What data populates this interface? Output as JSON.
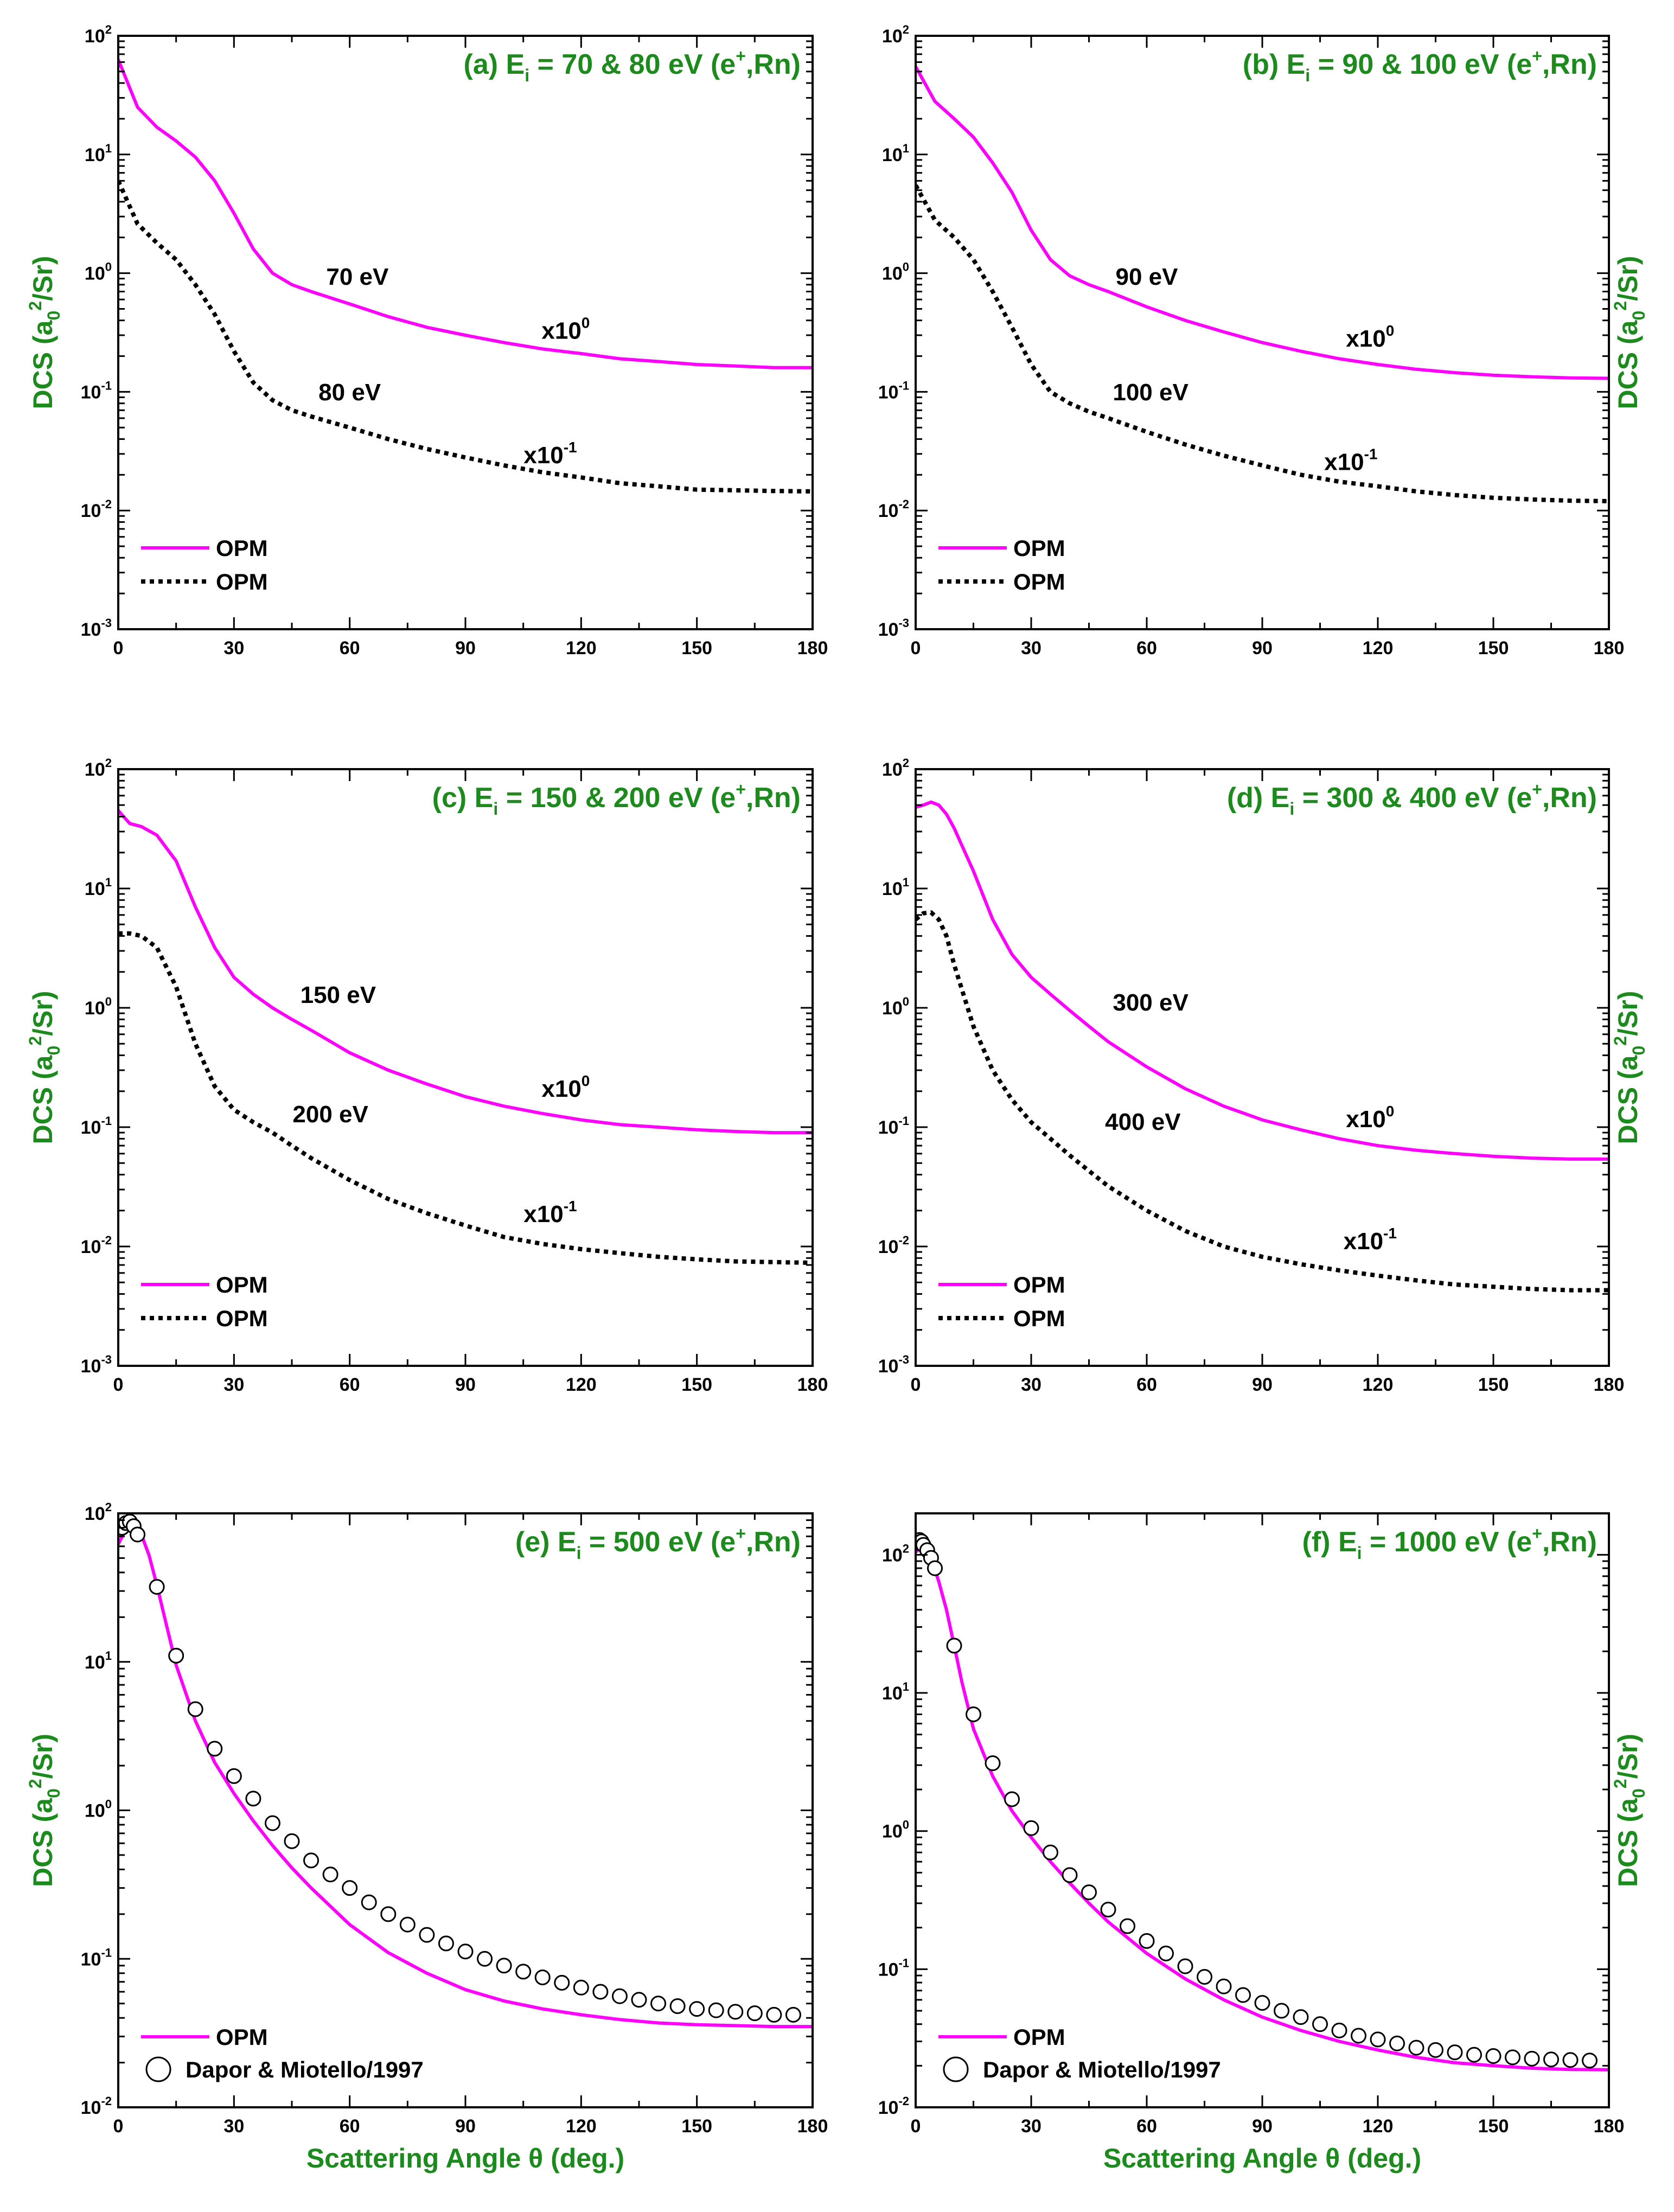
{
  "figure": {
    "y_label": {
      "pre": "DCS (a",
      "sub": "0",
      "sup": "2",
      "post": "/Sr)"
    },
    "x_label": "Scattering Angle θ (deg.)"
  },
  "chart_data": [
    {
      "id": "a",
      "type": "line",
      "title": {
        "pre": "(a) E",
        "sub": "i",
        "mid": " = 70 & 80 eV (e",
        "sup": "+",
        "post": ",Rn)"
      },
      "xlim": [
        0,
        180
      ],
      "xticks": [
        0,
        30,
        60,
        90,
        120,
        150,
        180
      ],
      "ylim_log10": [
        -3,
        2
      ],
      "yticks_log10": [
        -3,
        -2,
        -1,
        0,
        1,
        2
      ],
      "series": [
        {
          "name": "70 eV",
          "legend": "OPM",
          "style": "solid",
          "color": "#ff00ff",
          "x": [
            0,
            5,
            10,
            15,
            20,
            25,
            30,
            35,
            40,
            45,
            50,
            60,
            70,
            80,
            90,
            100,
            110,
            120,
            130,
            140,
            150,
            160,
            170,
            180
          ],
          "y": [
            63,
            25,
            17,
            13,
            9.5,
            6,
            3.2,
            1.6,
            1.0,
            0.8,
            0.7,
            0.55,
            0.43,
            0.35,
            0.3,
            0.26,
            0.23,
            0.21,
            0.19,
            0.18,
            0.17,
            0.165,
            0.16,
            0.16
          ]
        },
        {
          "name": "80 eV",
          "legend": "OPM",
          "style": "dotted",
          "color": "#000000",
          "x": [
            0,
            5,
            10,
            15,
            20,
            25,
            30,
            35,
            40,
            45,
            50,
            60,
            70,
            80,
            90,
            100,
            110,
            120,
            130,
            140,
            150,
            160,
            170,
            180
          ],
          "y": [
            6,
            2.6,
            1.8,
            1.3,
            0.8,
            0.45,
            0.22,
            0.12,
            0.085,
            0.07,
            0.062,
            0.05,
            0.04,
            0.033,
            0.028,
            0.024,
            0.021,
            0.019,
            0.017,
            0.016,
            0.015,
            0.0148,
            0.0146,
            0.0145
          ]
        }
      ],
      "annotations": [
        {
          "text": "70 eV",
          "x": 62,
          "y": 0.8
        },
        {
          "text": "80 eV",
          "x": 60,
          "y": 0.085
        },
        {
          "text": "x10",
          "sup": "0",
          "x": 116,
          "y": 0.28
        },
        {
          "text": "x10",
          "sup": "-1",
          "x": 112,
          "y": 0.025
        }
      ]
    },
    {
      "id": "b",
      "type": "line",
      "title": {
        "pre": "(b) E",
        "sub": "i",
        "mid": " = 90 & 100 eV (e",
        "sup": "+",
        "post": ",Rn)"
      },
      "xlim": [
        0,
        180
      ],
      "xticks": [
        0,
        30,
        60,
        90,
        120,
        150,
        180
      ],
      "ylim_log10": [
        -3,
        2
      ],
      "yticks_log10": [
        -3,
        -2,
        -1,
        0,
        1,
        2
      ],
      "series": [
        {
          "name": "90 eV",
          "legend": "OPM",
          "style": "solid",
          "color": "#ff00ff",
          "x": [
            0,
            5,
            10,
            15,
            20,
            25,
            30,
            35,
            40,
            45,
            50,
            60,
            70,
            80,
            90,
            100,
            110,
            120,
            130,
            140,
            150,
            160,
            170,
            180
          ],
          "y": [
            55,
            28,
            20,
            14,
            8.5,
            4.8,
            2.3,
            1.3,
            0.95,
            0.8,
            0.7,
            0.52,
            0.4,
            0.32,
            0.26,
            0.22,
            0.19,
            0.17,
            0.155,
            0.145,
            0.138,
            0.134,
            0.131,
            0.13
          ]
        },
        {
          "name": "100 eV",
          "legend": "OPM",
          "style": "dotted",
          "color": "#000000",
          "x": [
            0,
            5,
            10,
            15,
            20,
            25,
            30,
            35,
            40,
            45,
            50,
            60,
            70,
            80,
            90,
            100,
            110,
            120,
            130,
            140,
            150,
            160,
            170,
            180
          ],
          "y": [
            5.5,
            2.8,
            2.0,
            1.3,
            0.7,
            0.35,
            0.17,
            0.1,
            0.08,
            0.068,
            0.06,
            0.046,
            0.036,
            0.029,
            0.024,
            0.02,
            0.0175,
            0.016,
            0.0145,
            0.0135,
            0.0128,
            0.0124,
            0.0121,
            0.012
          ]
        }
      ],
      "annotations": [
        {
          "text": "90 eV",
          "x": 60,
          "y": 0.8
        },
        {
          "text": "100 eV",
          "x": 61,
          "y": 0.085
        },
        {
          "text": "x10",
          "sup": "0",
          "x": 118,
          "y": 0.24
        },
        {
          "text": "x10",
          "sup": "-1",
          "x": 113,
          "y": 0.022
        }
      ]
    },
    {
      "id": "c",
      "type": "line",
      "title": {
        "pre": "(c) E",
        "sub": "i",
        "mid": " = 150 & 200 eV (e",
        "sup": "+",
        "post": ",Rn)"
      },
      "xlim": [
        0,
        180
      ],
      "xticks": [
        0,
        30,
        60,
        90,
        120,
        150,
        180
      ],
      "ylim_log10": [
        -3,
        2
      ],
      "yticks_log10": [
        -3,
        -2,
        -1,
        0,
        1,
        2
      ],
      "series": [
        {
          "name": "150 eV",
          "legend": "OPM",
          "style": "solid",
          "color": "#ff00ff",
          "x": [
            0,
            3,
            6,
            10,
            15,
            20,
            25,
            30,
            35,
            40,
            45,
            50,
            60,
            70,
            80,
            90,
            100,
            110,
            120,
            130,
            140,
            150,
            160,
            170,
            180
          ],
          "y": [
            45,
            35,
            33,
            28,
            17,
            7,
            3.2,
            1.8,
            1.3,
            1.0,
            0.8,
            0.65,
            0.42,
            0.3,
            0.23,
            0.18,
            0.15,
            0.13,
            0.115,
            0.105,
            0.1,
            0.095,
            0.092,
            0.09,
            0.09
          ]
        },
        {
          "name": "200 eV",
          "legend": "OPM",
          "style": "dotted",
          "color": "#000000",
          "x": [
            0,
            3,
            6,
            10,
            15,
            20,
            25,
            30,
            35,
            40,
            45,
            50,
            60,
            70,
            80,
            90,
            100,
            110,
            120,
            130,
            140,
            150,
            160,
            170,
            180
          ],
          "y": [
            4.2,
            4.2,
            4.0,
            3.2,
            1.5,
            0.5,
            0.22,
            0.14,
            0.11,
            0.09,
            0.07,
            0.055,
            0.036,
            0.025,
            0.019,
            0.015,
            0.012,
            0.0105,
            0.0095,
            0.0088,
            0.0082,
            0.0078,
            0.0075,
            0.0074,
            0.0073
          ]
        }
      ],
      "annotations": [
        {
          "text": "150 eV",
          "x": 57,
          "y": 1.1
        },
        {
          "text": "200 eV",
          "x": 55,
          "y": 0.11
        },
        {
          "text": "x10",
          "sup": "0",
          "x": 116,
          "y": 0.18
        },
        {
          "text": "x10",
          "sup": "-1",
          "x": 112,
          "y": 0.016
        }
      ]
    },
    {
      "id": "d",
      "type": "line",
      "title": {
        "pre": "(d) E",
        "sub": "i",
        "mid": " = 300 & 400 eV (e",
        "sup": "+",
        "post": ",Rn)"
      },
      "xlim": [
        0,
        180
      ],
      "xticks": [
        0,
        30,
        60,
        90,
        120,
        150,
        180
      ],
      "ylim_log10": [
        -3,
        2
      ],
      "yticks_log10": [
        -3,
        -2,
        -1,
        0,
        1,
        2
      ],
      "series": [
        {
          "name": "300 eV",
          "legend": "OPM",
          "style": "solid",
          "color": "#ff00ff",
          "x": [
            0,
            2,
            4,
            6,
            8,
            10,
            15,
            20,
            25,
            30,
            35,
            40,
            45,
            50,
            60,
            70,
            80,
            90,
            100,
            110,
            120,
            130,
            140,
            150,
            160,
            170,
            180
          ],
          "y": [
            48,
            50,
            53,
            50,
            42,
            32,
            14,
            5.5,
            2.8,
            1.8,
            1.3,
            0.95,
            0.7,
            0.52,
            0.32,
            0.21,
            0.15,
            0.115,
            0.095,
            0.08,
            0.07,
            0.064,
            0.06,
            0.057,
            0.055,
            0.054,
            0.054
          ]
        },
        {
          "name": "400 eV",
          "legend": "OPM",
          "style": "dotted",
          "color": "#000000",
          "x": [
            0,
            2,
            4,
            6,
            8,
            10,
            15,
            20,
            25,
            30,
            35,
            40,
            45,
            50,
            60,
            70,
            80,
            90,
            100,
            110,
            120,
            130,
            140,
            150,
            160,
            170,
            180
          ],
          "y": [
            5.5,
            6.2,
            6.3,
            5.5,
            4.0,
            2.3,
            0.7,
            0.3,
            0.17,
            0.11,
            0.08,
            0.058,
            0.043,
            0.032,
            0.02,
            0.0135,
            0.01,
            0.0082,
            0.0071,
            0.0063,
            0.0057,
            0.0052,
            0.0048,
            0.0046,
            0.0044,
            0.0043,
            0.0043
          ]
        }
      ],
      "annotations": [
        {
          "text": "300 eV",
          "x": 61,
          "y": 0.95
        },
        {
          "text": "400 eV",
          "x": 59,
          "y": 0.095
        },
        {
          "text": "x10",
          "sup": "0",
          "x": 118,
          "y": 0.1
        },
        {
          "text": "x10",
          "sup": "-1",
          "x": 118,
          "y": 0.0095
        }
      ]
    },
    {
      "id": "e",
      "type": "line+scatter",
      "title": {
        "pre": "(e) E",
        "sub": "i",
        "mid": " = 500 eV (e",
        "sup": "+",
        "post": ",Rn)"
      },
      "xlim": [
        0,
        180
      ],
      "xticks": [
        0,
        30,
        60,
        90,
        120,
        150,
        180
      ],
      "ylim_log10": [
        -2,
        2
      ],
      "yticks_log10": [
        -2,
        -1,
        0,
        1,
        2
      ],
      "series": [
        {
          "name": "OPM",
          "legend": "OPM",
          "style": "solid",
          "color": "#ff00ff",
          "x": [
            0,
            2,
            4,
            6,
            8,
            10,
            12,
            15,
            20,
            25,
            30,
            35,
            40,
            45,
            50,
            60,
            70,
            80,
            90,
            100,
            110,
            120,
            130,
            140,
            150,
            160,
            170,
            180
          ],
          "y": [
            62,
            78,
            82,
            72,
            52,
            33,
            20,
            9.5,
            4.0,
            2.1,
            1.3,
            0.85,
            0.58,
            0.41,
            0.3,
            0.17,
            0.11,
            0.08,
            0.062,
            0.052,
            0.046,
            0.042,
            0.039,
            0.037,
            0.036,
            0.0355,
            0.035,
            0.035
          ]
        },
        {
          "name": "Dapor & Miotello/1997",
          "legend": "Dapor & Miotello/1997",
          "style": "circles",
          "color": "#000000",
          "x": [
            1,
            2,
            3,
            4,
            5,
            10,
            15,
            20,
            25,
            30,
            35,
            40,
            45,
            50,
            55,
            60,
            65,
            70,
            75,
            80,
            85,
            90,
            95,
            100,
            105,
            110,
            115,
            120,
            125,
            130,
            135,
            140,
            145,
            150,
            155,
            160,
            165,
            170,
            175
          ],
          "y": [
            80,
            86,
            88,
            82,
            72,
            32,
            11,
            4.8,
            2.6,
            1.7,
            1.2,
            0.82,
            0.62,
            0.46,
            0.37,
            0.3,
            0.24,
            0.2,
            0.17,
            0.145,
            0.127,
            0.112,
            0.1,
            0.09,
            0.082,
            0.075,
            0.069,
            0.064,
            0.06,
            0.056,
            0.053,
            0.05,
            0.048,
            0.046,
            0.045,
            0.044,
            0.043,
            0.042,
            0.042
          ]
        }
      ],
      "annotations": []
    },
    {
      "id": "f",
      "type": "line+scatter",
      "title": {
        "pre": "(f) E",
        "sub": "i",
        "mid": " = 1000 eV (e",
        "sup": "+",
        "post": ",Rn)"
      },
      "xlim": [
        0,
        180
      ],
      "xticks": [
        0,
        30,
        60,
        90,
        120,
        150,
        180
      ],
      "ylim_log10": [
        -2,
        2.3
      ],
      "yticks_log10": [
        -2,
        -1,
        0,
        1,
        2
      ],
      "series": [
        {
          "name": "OPM",
          "legend": "OPM",
          "style": "solid",
          "color": "#ff00ff",
          "x": [
            0,
            1,
            2,
            3,
            4,
            5,
            6,
            8,
            10,
            12,
            15,
            20,
            25,
            30,
            35,
            40,
            45,
            50,
            60,
            70,
            80,
            90,
            100,
            110,
            120,
            130,
            140,
            150,
            160,
            170,
            180
          ],
          "y": [
            105,
            110,
            108,
            100,
            90,
            78,
            64,
            40,
            22,
            12,
            5.5,
            2.5,
            1.4,
            0.9,
            0.6,
            0.42,
            0.3,
            0.22,
            0.13,
            0.085,
            0.06,
            0.045,
            0.036,
            0.03,
            0.026,
            0.023,
            0.021,
            0.02,
            0.0192,
            0.0188,
            0.0187
          ]
        },
        {
          "name": "Dapor & Miotello/1997",
          "legend": "Dapor & Miotello/1997",
          "style": "circles",
          "color": "#000000",
          "x": [
            0.5,
            1,
            1.5,
            2,
            3,
            4,
            5,
            10,
            15,
            20,
            25,
            30,
            35,
            40,
            45,
            50,
            55,
            60,
            65,
            70,
            75,
            80,
            85,
            90,
            95,
            100,
            105,
            110,
            115,
            120,
            125,
            130,
            135,
            140,
            145,
            150,
            155,
            160,
            165,
            170,
            175
          ],
          "y": [
            122,
            128,
            125,
            118,
            108,
            95,
            80,
            22,
            7,
            3.1,
            1.7,
            1.05,
            0.7,
            0.48,
            0.36,
            0.27,
            0.205,
            0.16,
            0.13,
            0.105,
            0.088,
            0.075,
            0.065,
            0.057,
            0.05,
            0.045,
            0.04,
            0.036,
            0.033,
            0.031,
            0.029,
            0.027,
            0.026,
            0.025,
            0.024,
            0.0235,
            0.023,
            0.0225,
            0.0222,
            0.022,
            0.0218
          ]
        }
      ],
      "annotations": []
    }
  ]
}
